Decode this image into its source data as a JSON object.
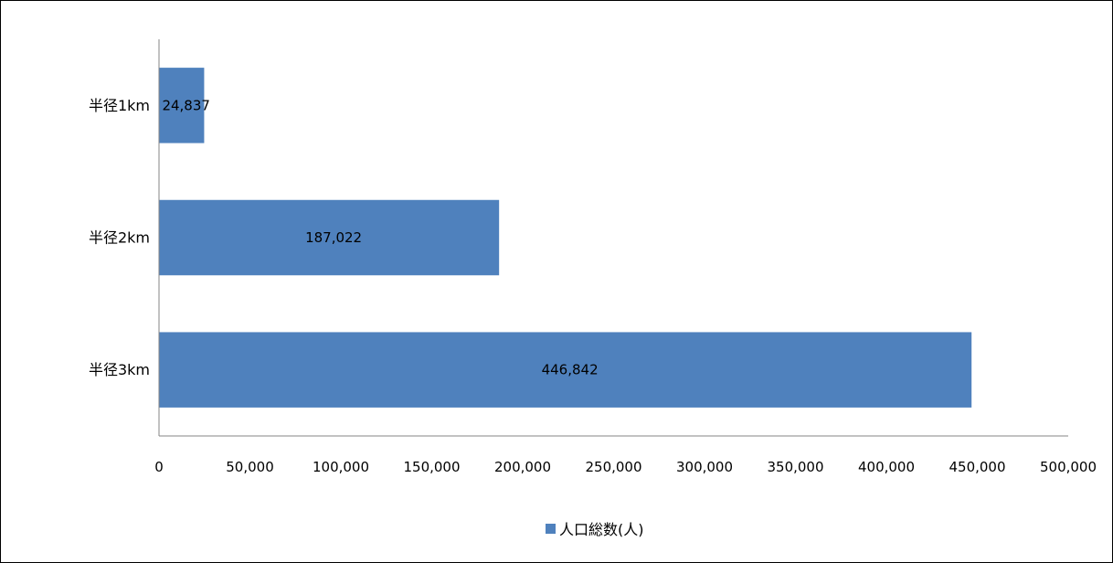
{
  "chart_data": {
    "type": "bar",
    "orientation": "horizontal",
    "categories": [
      "半径1km",
      "半径2km",
      "半径3km"
    ],
    "series": [
      {
        "name": "人口総数(人)",
        "values": [
          24837,
          187022,
          446842
        ],
        "labels": [
          "24,837",
          "187,022",
          "446,842"
        ],
        "color": "#4F81BD"
      }
    ],
    "xlim": [
      0,
      500000
    ],
    "xticks": [
      0,
      50000,
      100000,
      150000,
      200000,
      250000,
      300000,
      350000,
      400000,
      450000,
      500000
    ],
    "xtick_labels": [
      "0",
      "50,000",
      "100,000",
      "150,000",
      "200,000",
      "250,000",
      "300,000",
      "350,000",
      "400,000",
      "450,000",
      "500,000"
    ],
    "grid": false,
    "legend_position": "bottom"
  }
}
